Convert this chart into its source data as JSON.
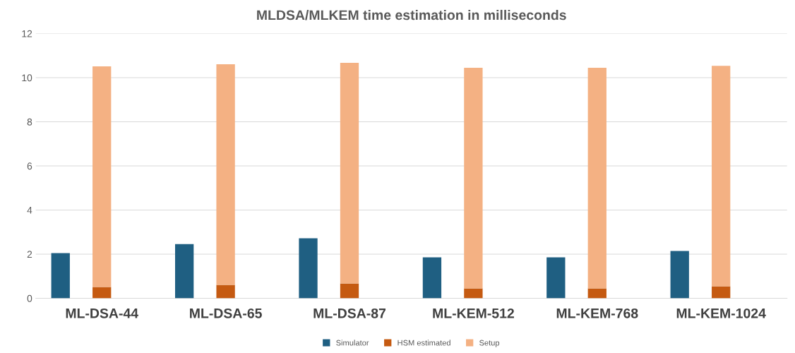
{
  "chart_data": {
    "type": "bar",
    "title": "MLDSA/MLKEM time estimation in milliseconds",
    "categories": [
      null,
      "ML-DSA-44",
      null,
      null,
      "ML-DSA-65",
      null,
      null,
      "ML-DSA-87",
      null,
      null,
      "ML-KEM-512",
      null,
      null,
      "ML-KEM-768",
      null,
      null,
      "ML-KEM-1024",
      null
    ],
    "stacked": true,
    "series": [
      {
        "name": "Simulator",
        "color": "#1f5f82",
        "values": [
          2.05,
          null,
          null,
          2.46,
          null,
          null,
          2.72,
          null,
          null,
          1.86,
          null,
          null,
          1.86,
          null,
          null,
          2.14,
          null,
          null
        ]
      },
      {
        "name": "HSM estimated",
        "color": "#c55a11",
        "values": [
          null,
          0.51,
          null,
          null,
          0.61,
          null,
          null,
          0.67,
          null,
          null,
          0.45,
          null,
          null,
          0.45,
          null,
          null,
          0.54,
          null
        ]
      },
      {
        "name": "Setup",
        "color": "#f4b183",
        "values": [
          null,
          10.0,
          null,
          null,
          10.0,
          null,
          null,
          10.0,
          null,
          null,
          10.0,
          null,
          null,
          10.0,
          null,
          null,
          10.0,
          null
        ]
      }
    ],
    "ylim": [
      0,
      12
    ],
    "yticks": [
      0,
      2,
      4,
      6,
      8,
      10,
      12
    ],
    "grid": "y",
    "legend": "bottom"
  }
}
